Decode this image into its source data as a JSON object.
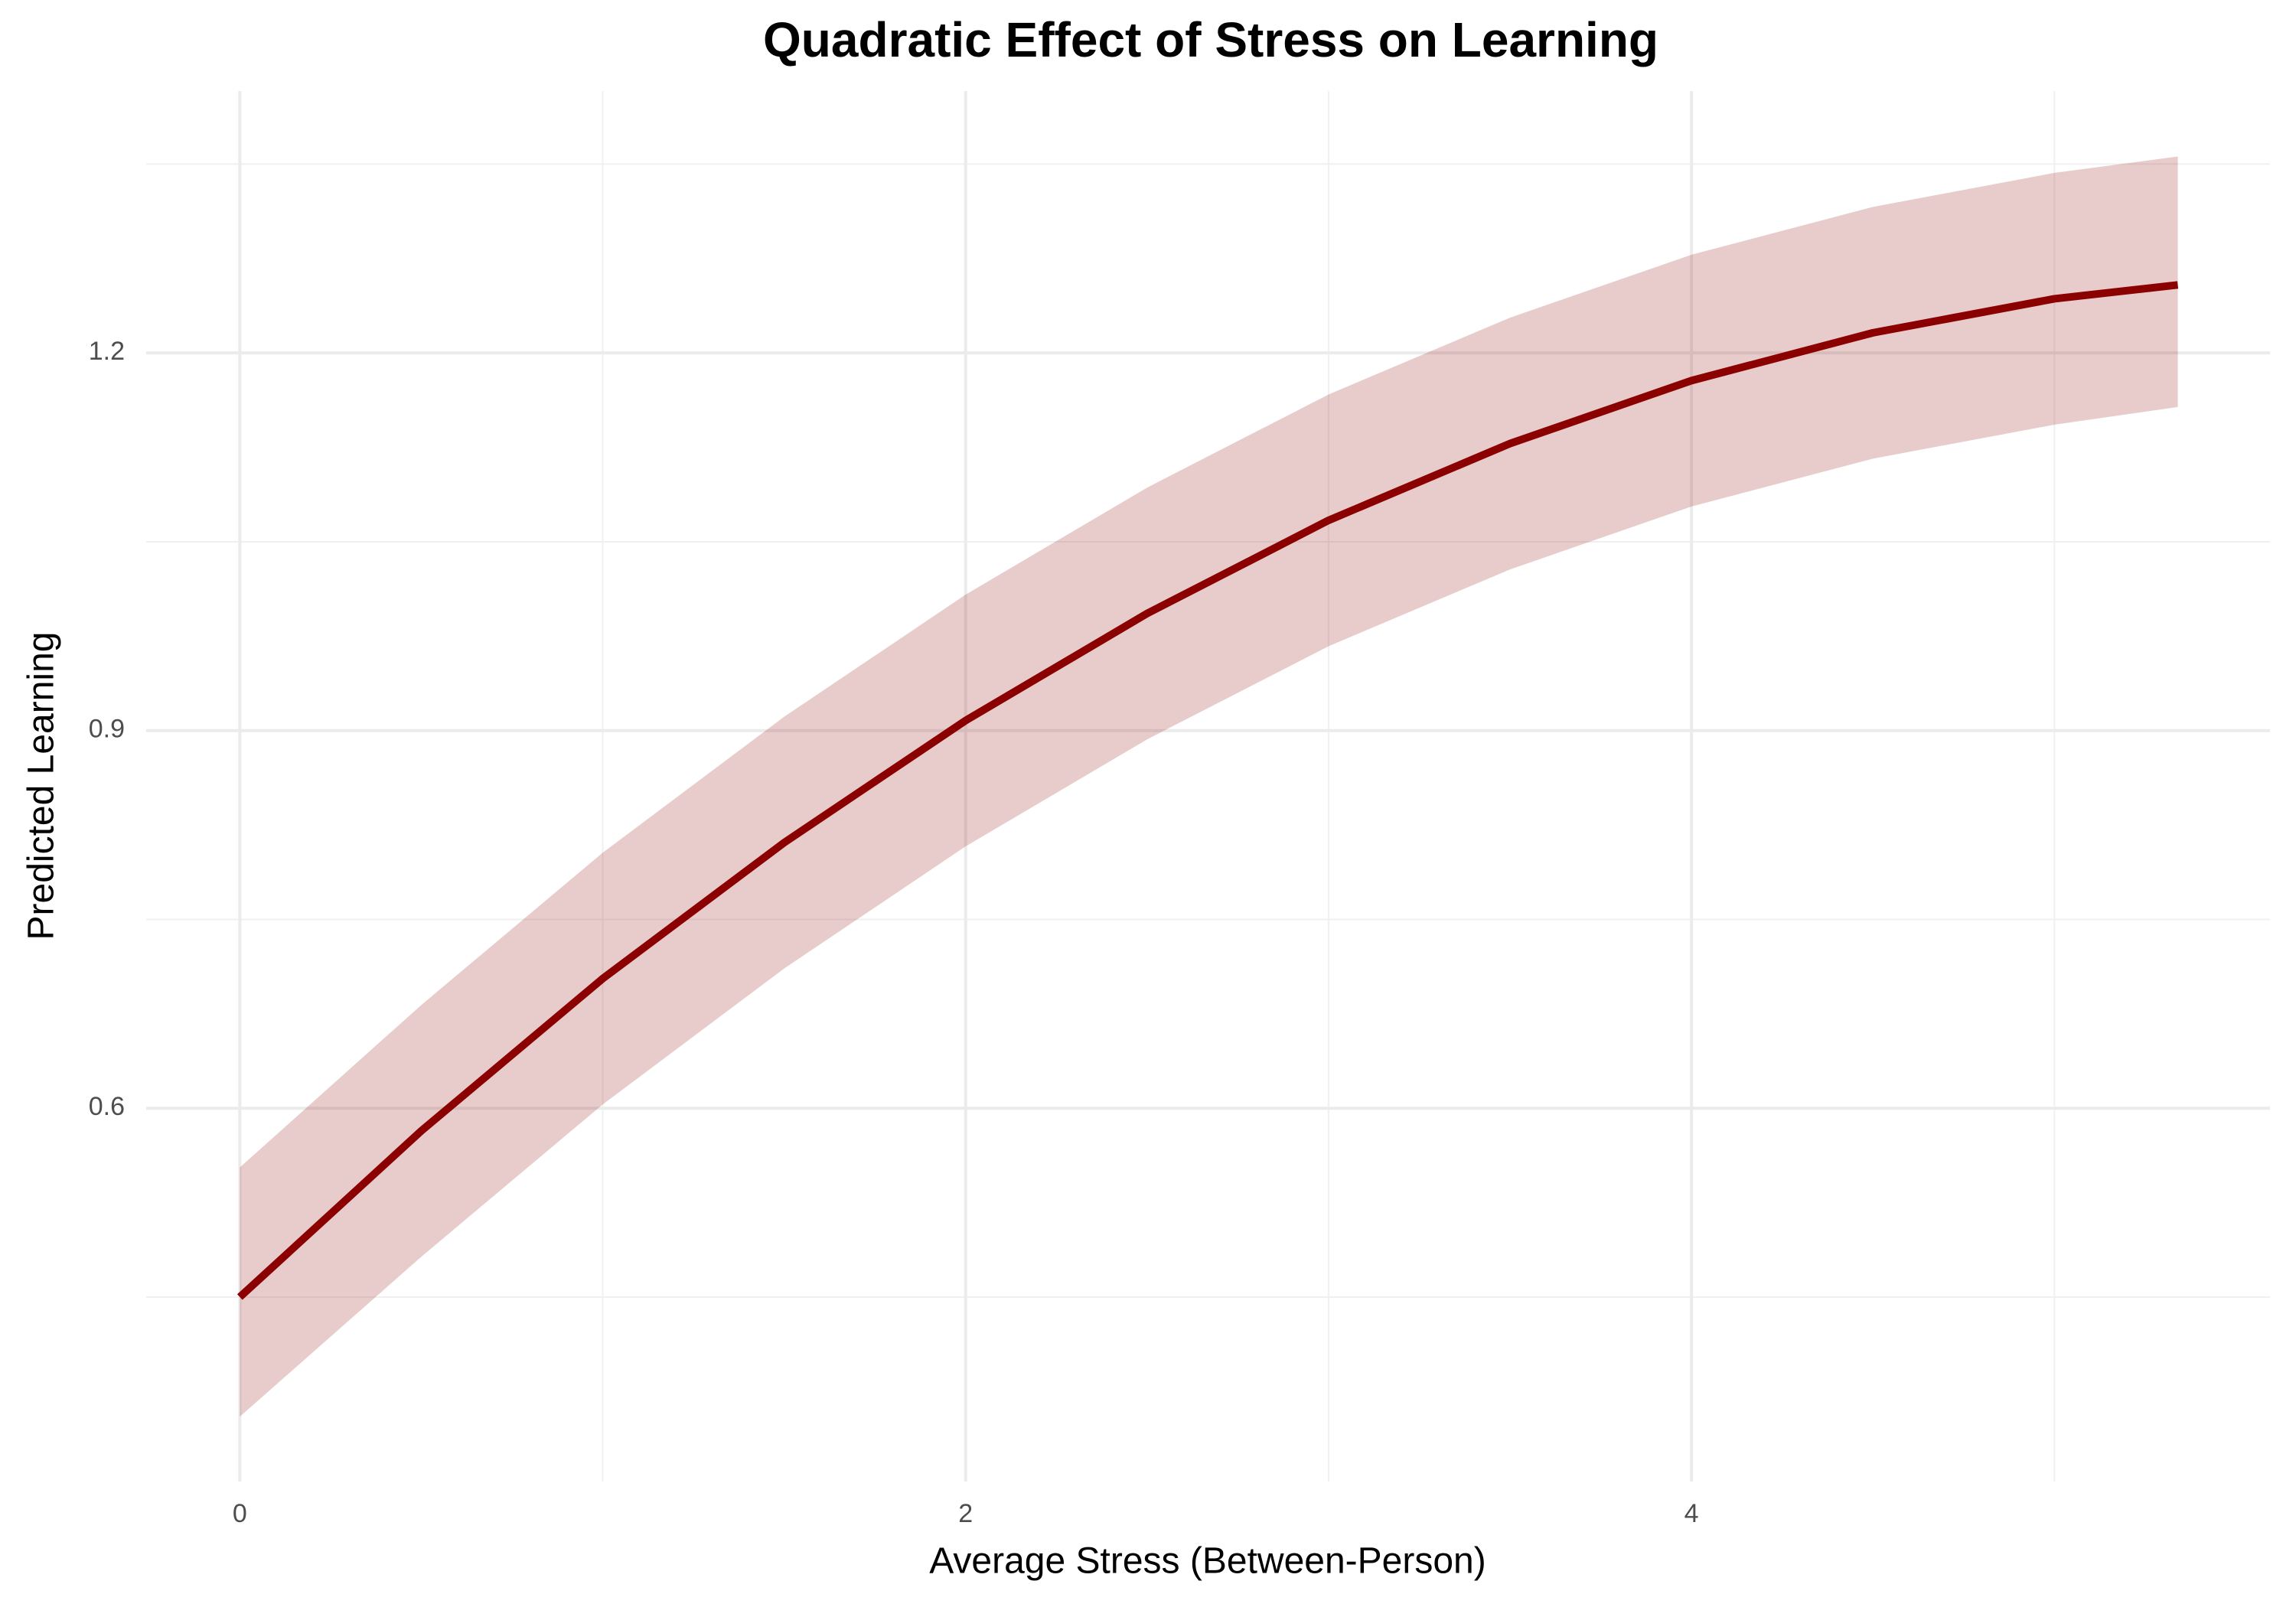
{
  "chart_data": {
    "type": "line",
    "title": "Quadratic Effect of Stress on Learning",
    "x_label": "Average Stress (Between-Person)",
    "y_label": "Predicted Learning",
    "x": [
      0,
      0.5,
      1,
      1.5,
      2,
      2.5,
      3,
      3.5,
      4,
      4.5,
      5,
      5.34
    ],
    "values": [
      0.45,
      0.582,
      0.703,
      0.811,
      0.908,
      0.993,
      1.067,
      1.128,
      1.178,
      1.216,
      1.243,
      1.254
    ],
    "lower": [
      0.355,
      0.482,
      0.603,
      0.711,
      0.808,
      0.893,
      0.967,
      1.028,
      1.078,
      1.116,
      1.143,
      1.157
    ],
    "upper": [
      0.553,
      0.682,
      0.803,
      0.911,
      1.008,
      1.093,
      1.167,
      1.228,
      1.278,
      1.316,
      1.343,
      1.356
    ],
    "color": "#8b0000",
    "band_color": "#8b0000",
    "xlim": [
      -0.258,
      5.594
    ],
    "ylim": [
      0.3035,
      1.408
    ],
    "xticks": [
      0,
      2,
      4
    ],
    "yticks": [
      0.6,
      0.9,
      1.2
    ],
    "x_minor_grid": [
      1,
      3,
      5
    ],
    "y_minor_grid": [
      0.45,
      0.75,
      1.05,
      1.35
    ],
    "grid": true
  }
}
